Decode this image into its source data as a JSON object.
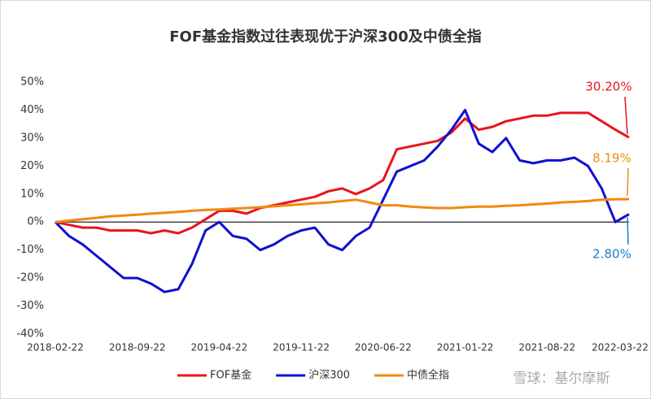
{
  "chart_data": {
    "type": "line",
    "title": "FOF基金指数过往表现优于沪深300及中债全指",
    "categories": [
      "2018-02-22",
      null,
      null,
      null,
      null,
      null,
      "2018-09-22",
      null,
      null,
      null,
      null,
      null,
      "2019-04-22",
      null,
      null,
      null,
      null,
      null,
      "2019-11-22",
      null,
      null,
      null,
      null,
      null,
      "2020-06-22",
      null,
      null,
      null,
      null,
      null,
      "2021-01-22",
      null,
      null,
      null,
      null,
      null,
      "2021-08-22",
      null,
      null,
      null,
      null,
      null,
      "2022-03-22"
    ],
    "series": [
      {
        "name": "FOF基金",
        "color": "#e8141c",
        "values": [
          0,
          -1,
          -2,
          -2,
          -3,
          -3,
          -3,
          -4,
          -3,
          -4,
          -2,
          1,
          4,
          4,
          3,
          5,
          6,
          7,
          8,
          9,
          11,
          12,
          10,
          12,
          15,
          26,
          27,
          28,
          29,
          32,
          37,
          33,
          34,
          36,
          37,
          38,
          38,
          39,
          39,
          39,
          36,
          33,
          30.2
        ]
      },
      {
        "name": "沪深300",
        "color": "#1010d0",
        "values": [
          0,
          -5,
          -8,
          -12,
          -16,
          -20,
          -20,
          -22,
          -25,
          -24,
          -15,
          -3,
          0,
          -5,
          -6,
          -10,
          -8,
          -5,
          -3,
          -2,
          -8,
          -10,
          -5,
          -2,
          8,
          18,
          20,
          22,
          27,
          33,
          40,
          28,
          25,
          30,
          22,
          21,
          22,
          22,
          23,
          20,
          12,
          0,
          2.8
        ]
      },
      {
        "name": "中债全指",
        "color": "#f08a10",
        "values": [
          0,
          0.5,
          1,
          1.5,
          2,
          2.3,
          2.6,
          3,
          3.3,
          3.6,
          4,
          4.3,
          4.5,
          4.8,
          5,
          5.3,
          5.6,
          6,
          6.3,
          6.7,
          7,
          7.5,
          8,
          7,
          6,
          6,
          5.5,
          5.2,
          5,
          5,
          5.3,
          5.5,
          5.5,
          5.8,
          6,
          6.3,
          6.6,
          7,
          7.2,
          7.5,
          8,
          8.1,
          8.19
        ]
      }
    ],
    "ylim": [
      -40,
      50
    ],
    "yticks": [
      {
        "value": -40,
        "label": "-40%"
      },
      {
        "value": -30,
        "label": "-30%"
      },
      {
        "value": -20,
        "label": "-20%"
      },
      {
        "value": -10,
        "label": "-10%"
      },
      {
        "value": 0,
        "label": "0%"
      },
      {
        "value": 10,
        "label": "10%"
      },
      {
        "value": 20,
        "label": "20%"
      },
      {
        "value": 30,
        "label": "30%"
      },
      {
        "value": 40,
        "label": "40%"
      },
      {
        "value": 50,
        "label": "50%"
      }
    ],
    "annotations": [
      {
        "text": "30.20%",
        "color": "#e8141c"
      },
      {
        "text": "8.19%",
        "color": "#f08a10"
      },
      {
        "text": "2.80%",
        "color": "#1a7fd0"
      }
    ],
    "watermark": "雪球：基尔摩斯"
  }
}
